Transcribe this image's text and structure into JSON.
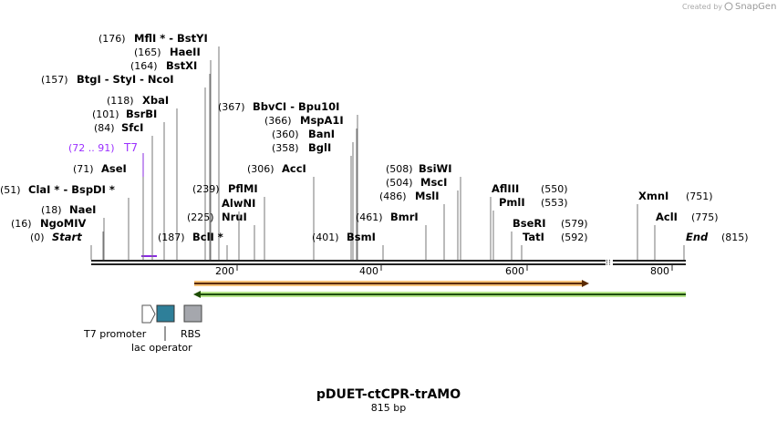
{
  "watermark": {
    "prefix": "Created by",
    "brand": "SnapGene"
  },
  "sites": [
    {
      "position": "(176)",
      "name": "MflI * - BstYI"
    },
    {
      "position": "(165)",
      "name": "HaeII"
    },
    {
      "position": "(164)",
      "name": "BstXI"
    },
    {
      "position": "(157)",
      "name": "BtgI - StyI - NcoI"
    },
    {
      "position": "(118)",
      "name": "XbaI"
    },
    {
      "position": "(101)",
      "name": "BsrBI"
    },
    {
      "position": "(84)",
      "name": "SfcI"
    },
    {
      "position": "(71)",
      "name": "AseI"
    },
    {
      "position": "(51)",
      "name": "ClaI * - BspDI *"
    },
    {
      "position": "(18)",
      "name": "NaeI"
    },
    {
      "position": "(16)",
      "name": "NgoMIV"
    },
    {
      "position": "(0)",
      "name": "Start"
    },
    {
      "position": "(187)",
      "name": "BclI *"
    },
    {
      "position": "(225)",
      "name": "NruI"
    },
    {
      "name": "AlwNI"
    },
    {
      "position": "(239)",
      "name": "PflMI"
    },
    {
      "position": "(306)",
      "name": "AccI"
    },
    {
      "position": "(367)",
      "name": "BbvCI - Bpu10I"
    },
    {
      "position": "(366)",
      "name": "MspA1I"
    },
    {
      "position": "(360)",
      "name": "BanI"
    },
    {
      "position": "(358)",
      "name": "BglI"
    },
    {
      "position": "(401)",
      "name": "BsmI"
    },
    {
      "position": "(461)",
      "name": "BmrI"
    },
    {
      "position": "(486)",
      "name": "MslI"
    },
    {
      "position": "(504)",
      "name": "MscI"
    },
    {
      "position": "(508)",
      "name": "BsiWI"
    },
    {
      "position": "(550)",
      "name": "AflIII"
    },
    {
      "position": "(553)",
      "name": "PmlI"
    },
    {
      "position": "(579)",
      "name": "BseRI"
    },
    {
      "position": "(592)",
      "name": "TatI"
    },
    {
      "position": "(751)",
      "name": "XmnI"
    },
    {
      "position": "(775)",
      "name": "AclI"
    },
    {
      "position": "(815)",
      "name": "End"
    }
  ],
  "feature_label": {
    "range": "(72 .. 91)",
    "name": "T7"
  },
  "scale_ticks": [
    "200",
    "400",
    "600",
    "800"
  ],
  "legend": [
    "T7 promoter",
    "lac operator",
    "RBS"
  ],
  "title": "pDUET-ctCPR-trAMO",
  "subtitle": "815 bp"
}
